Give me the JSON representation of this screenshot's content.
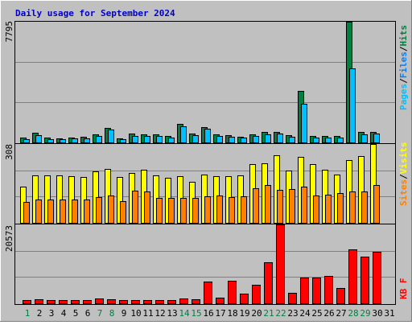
{
  "chart_data": [
    {
      "type": "bar",
      "title": "Daily usage for September 2024",
      "categories": [
        "1",
        "2",
        "3",
        "4",
        "5",
        "6",
        "7",
        "8",
        "9",
        "10",
        "11",
        "12",
        "13",
        "14",
        "15",
        "16",
        "17",
        "18",
        "19",
        "20",
        "21",
        "22",
        "23",
        "24",
        "25",
        "26",
        "27",
        "28",
        "29",
        "30",
        "31"
      ],
      "weekend_categories": [
        "1",
        "7",
        "8",
        "14",
        "15",
        "21",
        "22",
        "28",
        "29"
      ],
      "ylim": [
        0,
        7795
      ],
      "ymax_label": "7795",
      "legend": [
        "Pages",
        "/",
        "Files",
        "/",
        "Hits"
      ],
      "series": [
        {
          "name": "Hits",
          "values": [
            300,
            620,
            300,
            280,
            330,
            340,
            520,
            920,
            280,
            590,
            520,
            520,
            400,
            1180,
            590,
            1000,
            530,
            450,
            380,
            530,
            650,
            690,
            470,
            3300,
            420,
            400,
            430,
            7795,
            650,
            690,
            0
          ]
        },
        {
          "name": "Files",
          "values": [
            210,
            450,
            220,
            210,
            250,
            260,
            400,
            850,
            200,
            440,
            390,
            390,
            300,
            1050,
            460,
            870,
            420,
            350,
            300,
            420,
            530,
            580,
            350,
            2500,
            320,
            300,
            310,
            4800,
            530,
            580,
            0
          ]
        }
      ]
    },
    {
      "type": "bar",
      "categories": [
        "1",
        "2",
        "3",
        "4",
        "5",
        "6",
        "7",
        "8",
        "9",
        "10",
        "11",
        "12",
        "13",
        "14",
        "15",
        "16",
        "17",
        "18",
        "19",
        "20",
        "21",
        "22",
        "23",
        "24",
        "25",
        "26",
        "27",
        "28",
        "29",
        "30",
        "31"
      ],
      "ylim": [
        0,
        308
      ],
      "ymax_label": "308",
      "legend": [
        "Sites",
        "/",
        "Visits"
      ],
      "series": [
        {
          "name": "Visits",
          "values": [
            141,
            186,
            185,
            184,
            181,
            180,
            201,
            211,
            180,
            194,
            207,
            187,
            177,
            182,
            159,
            189,
            182,
            181,
            184,
            229,
            233,
            265,
            204,
            257,
            230,
            206,
            189,
            244,
            260,
            308,
            0
          ]
        },
        {
          "name": "Sites",
          "values": [
            82,
            90,
            90,
            90,
            91,
            91,
            101,
            108,
            84,
            126,
            121,
            98,
            96,
            98,
            97,
            104,
            108,
            102,
            104,
            136,
            147,
            130,
            132,
            140,
            108,
            110,
            116,
            121,
            123,
            147,
            0
          ]
        }
      ]
    },
    {
      "type": "bar",
      "categories": [
        "1",
        "2",
        "3",
        "4",
        "5",
        "6",
        "7",
        "8",
        "9",
        "10",
        "11",
        "12",
        "13",
        "14",
        "15",
        "16",
        "17",
        "18",
        "19",
        "20",
        "21",
        "22",
        "23",
        "24",
        "25",
        "26",
        "27",
        "28",
        "29",
        "30",
        "31"
      ],
      "ylim": [
        0,
        20573
      ],
      "ymax_label": "20573",
      "legend": [
        "KB F"
      ],
      "series": [
        {
          "name": "KB F",
          "values": [
            900,
            1100,
            800,
            800,
            900,
            800,
            1200,
            1000,
            900,
            900,
            900,
            900,
            800,
            1200,
            1100,
            5600,
            1400,
            5800,
            2500,
            4900,
            10700,
            20573,
            2700,
            6700,
            6700,
            7200,
            3900,
            14100,
            12200,
            13400,
            0
          ]
        }
      ]
    }
  ],
  "colors": {
    "background": "#c0c0c0",
    "title": "#0000cc",
    "hits": "#008040",
    "files": "#00c0ff",
    "pages": "#00c0ff",
    "visits": "#ffff00",
    "sites": "#ff8000",
    "kbytes": "#ff0000",
    "weekday_label": "#000000",
    "weekend_label": "#008040"
  }
}
